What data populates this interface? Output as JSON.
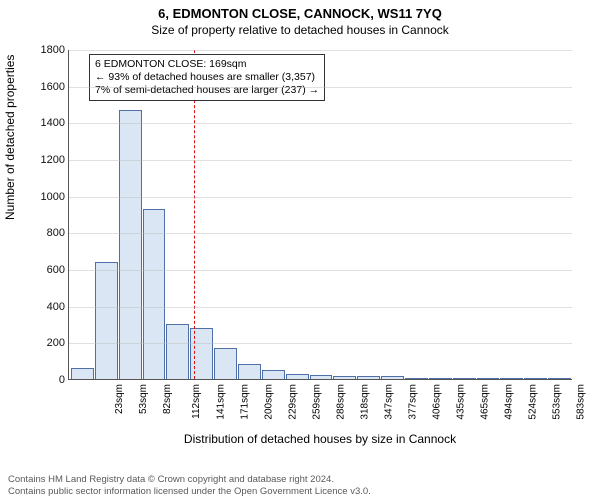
{
  "title": {
    "line1": "6, EDMONTON CLOSE, CANNOCK, WS11 7YQ",
    "line2": "Size of property relative to detached houses in Cannock"
  },
  "xlabel": "Distribution of detached houses by size in Cannock",
  "ylabel": "Number of detached properties",
  "y_axis": {
    "min": 0,
    "max": 1800,
    "step": 200,
    "ticks": [
      0,
      200,
      400,
      600,
      800,
      1000,
      1200,
      1400,
      1600,
      1800
    ]
  },
  "x_ticks": [
    "23sqm",
    "53sqm",
    "82sqm",
    "112sqm",
    "141sqm",
    "171sqm",
    "200sqm",
    "229sqm",
    "259sqm",
    "288sqm",
    "318sqm",
    "347sqm",
    "377sqm",
    "406sqm",
    "435sqm",
    "465sqm",
    "494sqm",
    "524sqm",
    "553sqm",
    "583sqm",
    "612sqm"
  ],
  "bars": [
    60,
    640,
    1470,
    930,
    300,
    280,
    170,
    80,
    50,
    25,
    20,
    15,
    15,
    15,
    2,
    2,
    1,
    1,
    1,
    1,
    1
  ],
  "bar_fill": "#dbe6f4",
  "bar_stroke": "#4f6fa8",
  "grid_color": "#bbbbbb",
  "vline": {
    "x_sqm": 169,
    "x_min_sqm": 23,
    "x_max_sqm": 612,
    "color": "#d11"
  },
  "annotation": {
    "line1": "6 EDMONTON CLOSE: 169sqm",
    "line2": "← 93% of detached houses are smaller (3,357)",
    "line3": "7% of semi-detached houses are larger (237) →"
  },
  "footer": {
    "line1": "Contains HM Land Registry data © Crown copyright and database right 2024.",
    "line2": "Contains public sector information licensed under the Open Government Licence v3.0."
  },
  "fonts": {
    "title": 13,
    "subtitle": 12,
    "axis_label": 12,
    "tick": 11,
    "xtick": 10,
    "annot": 10.5,
    "footer": 9.5
  }
}
